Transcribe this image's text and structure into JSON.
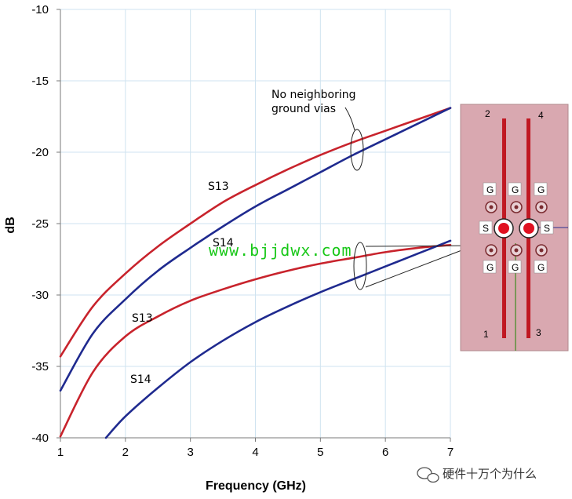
{
  "chart_data": {
    "type": "line",
    "xlabel": "Frequency (GHz)",
    "ylabel": "dB",
    "xlim": [
      1,
      7
    ],
    "ylim": [
      -40,
      -10
    ],
    "x_ticks": [
      "1",
      "2",
      "3",
      "4",
      "5",
      "6",
      "7"
    ],
    "y_ticks": [
      "-10",
      "-15",
      "-20",
      "-25",
      "-30",
      "-35",
      "-40"
    ],
    "grid": true,
    "series": [
      {
        "name": "S13",
        "group": "No neighboring ground vias",
        "color": "#c8232c",
        "x": [
          1,
          1.5,
          2,
          2.5,
          3,
          3.5,
          4,
          4.5,
          5,
          5.5,
          6,
          6.5,
          7
        ],
        "y": [
          -34.3,
          -30.8,
          -28.5,
          -26.6,
          -25.0,
          -23.5,
          -22.3,
          -21.2,
          -20.2,
          -19.3,
          -18.5,
          -17.7,
          -16.9
        ]
      },
      {
        "name": "S14",
        "group": "No neighboring ground vias",
        "color": "#1f2a8f",
        "x": [
          1,
          1.5,
          2,
          2.5,
          3,
          3.5,
          4,
          4.5,
          5,
          5.5,
          6,
          6.5,
          7
        ],
        "y": [
          -36.7,
          -32.7,
          -30.3,
          -28.3,
          -26.7,
          -25.2,
          -23.8,
          -22.6,
          -21.4,
          -20.2,
          -19.1,
          -18.0,
          -16.9
        ]
      },
      {
        "name": "S13",
        "color": "#c8232c",
        "x": [
          1,
          1.5,
          2,
          2.5,
          3,
          3.5,
          4,
          4.5,
          5,
          5.5,
          6,
          6.5,
          7
        ],
        "y": [
          -39.9,
          -35.4,
          -32.9,
          -31.5,
          -30.4,
          -29.6,
          -28.9,
          -28.3,
          -27.8,
          -27.4,
          -27.0,
          -26.7,
          -26.5
        ]
      },
      {
        "name": "S14",
        "color": "#1f2a8f",
        "x": [
          1.7,
          2,
          2.5,
          3,
          3.5,
          4,
          4.5,
          5,
          5.5,
          6,
          6.5,
          7
        ],
        "y": [
          -40.0,
          -38.5,
          -36.5,
          -34.7,
          -33.2,
          -31.9,
          -30.8,
          -29.8,
          -28.9,
          -28.0,
          -27.1,
          -26.2
        ]
      }
    ],
    "annotations": {
      "upper_text": [
        "No neighboring",
        "ground vias"
      ],
      "labels": [
        "S13",
        "S14",
        "S13",
        "S14"
      ]
    }
  },
  "inset": {
    "pin_labels": [
      "2",
      "4",
      "1",
      "3"
    ],
    "ground_label": "G",
    "signal_label": "S"
  },
  "watermark": "www.bjjdwx.com",
  "credit": "硬件十万个为什么"
}
